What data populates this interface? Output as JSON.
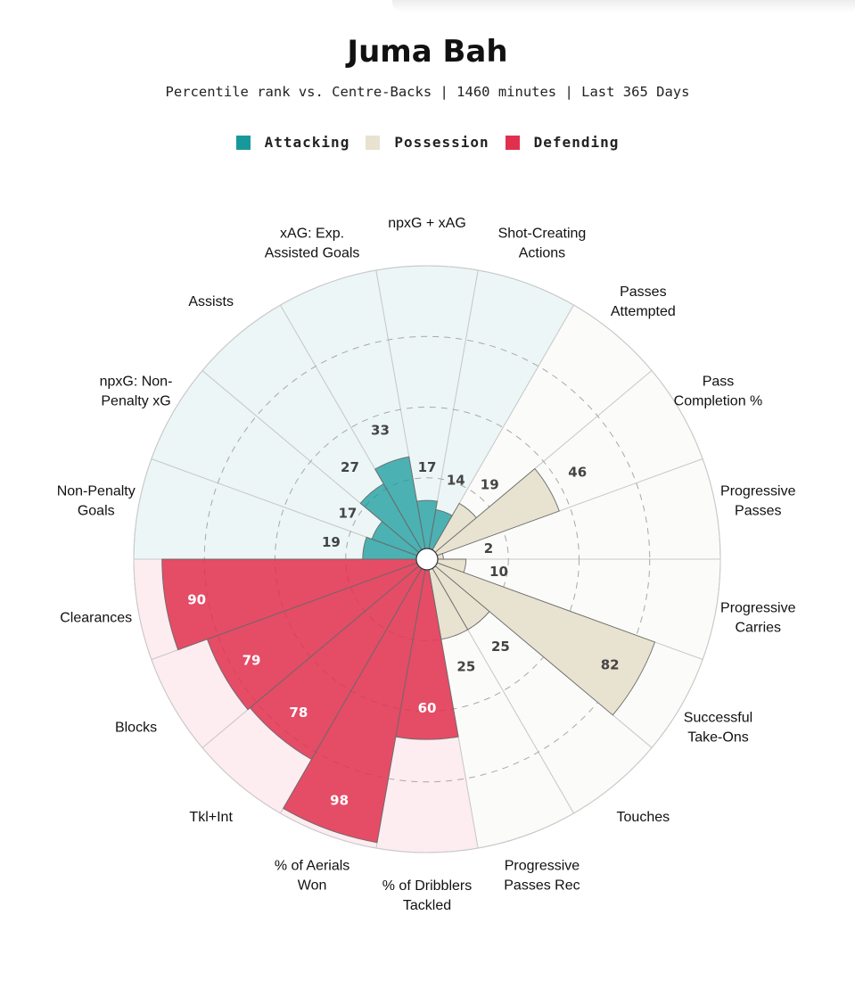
{
  "title": "Juma Bah",
  "subtitle": "Percentile rank vs. Centre-Backs | 1460 minutes | Last 365 Days",
  "legend": [
    {
      "label": "Attacking",
      "color": "#17999b"
    },
    {
      "label": "Possession",
      "color": "#e8e2d0"
    },
    {
      "label": "Defending",
      "color": "#e0304e"
    }
  ],
  "chart_data": {
    "type": "radial-bar",
    "title": "Juma Bah",
    "subtitle": "Percentile rank vs. Centre-Backs | 1460 minutes | Last 365 Days",
    "scale": [
      0,
      100
    ],
    "grid": true,
    "legend_placement": "top",
    "categories": [
      {
        "label": "Shot-Creating\nActions",
        "value": 14,
        "group": "Attacking"
      },
      {
        "label": "Passes\nAttempted",
        "value": 19,
        "group": "Possession"
      },
      {
        "label": "Pass\nCompletion %",
        "value": 46,
        "group": "Possession"
      },
      {
        "label": "Progressive\nPasses",
        "value": 2,
        "group": "Possession"
      },
      {
        "label": "Progressive\nCarries",
        "value": 10,
        "group": "Possession"
      },
      {
        "label": "Successful\nTake-Ons",
        "value": 82,
        "group": "Possession"
      },
      {
        "label": "Touches",
        "value": 25,
        "group": "Possession"
      },
      {
        "label": "Progressive\nPasses Rec",
        "value": 25,
        "group": "Possession"
      },
      {
        "label": "% of Dribblers\nTackled",
        "value": 60,
        "group": "Defending"
      },
      {
        "label": "% of Aerials\nWon",
        "value": 98,
        "group": "Defending"
      },
      {
        "label": "Tkl+Int",
        "value": 78,
        "group": "Defending"
      },
      {
        "label": "Blocks",
        "value": 79,
        "group": "Defending"
      },
      {
        "label": "Clearances",
        "value": 90,
        "group": "Defending"
      },
      {
        "label": "Non-Penalty\nGoals",
        "value": 19,
        "group": "Attacking"
      },
      {
        "label": "npxG: Non-\nPenalty xG",
        "value": 17,
        "group": "Attacking"
      },
      {
        "label": "Assists",
        "value": 27,
        "group": "Attacking"
      },
      {
        "label": "xAG: Exp.\nAssisted Goals",
        "value": 33,
        "group": "Attacking"
      },
      {
        "label": "npxG + xAG",
        "value": 17,
        "group": "Attacking"
      }
    ],
    "colors": {
      "Attacking": {
        "bar": "#17999b",
        "bg": "#ecf6f6"
      },
      "Possession": {
        "bar": "#e8e2d0",
        "bg": "#fbfbf9"
      },
      "Defending": {
        "bar": "#e0304e",
        "bg": "#fdecf0"
      }
    }
  }
}
